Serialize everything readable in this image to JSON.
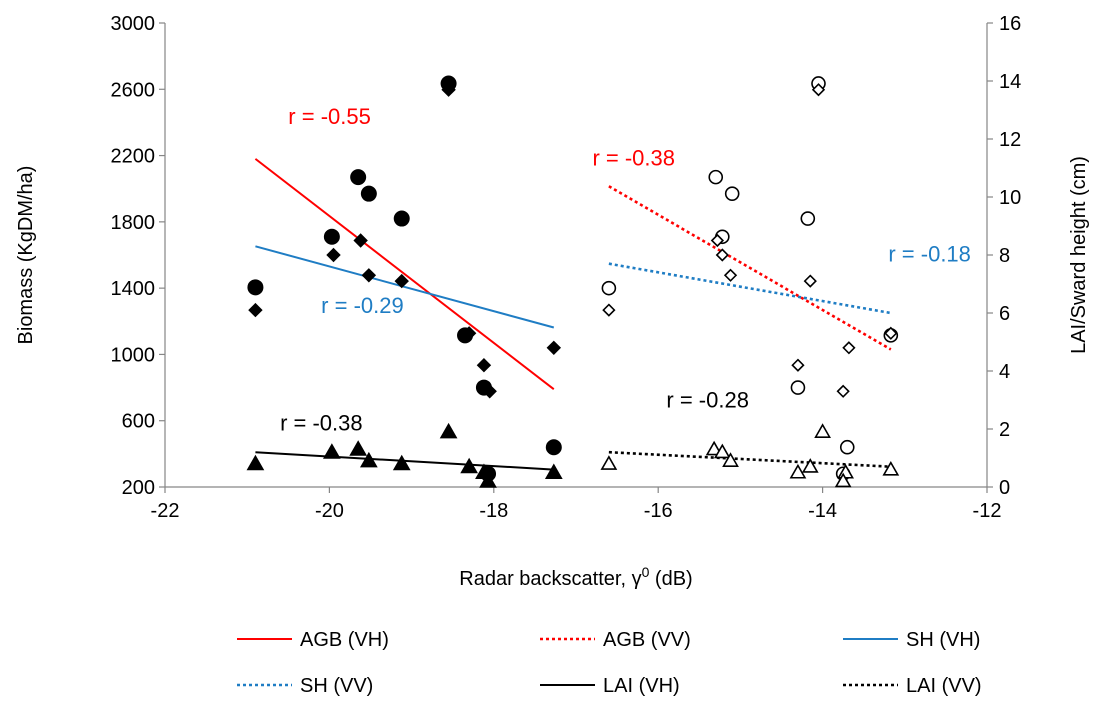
{
  "chart_data": {
    "type": "scatter",
    "xlabel": "Radar backscatter, γ",
    "xlabel_sup": "0",
    "xlabel_unit": " (dB)",
    "ylabel": "Biomass (KgDM/ha)",
    "y2label": "LAI/Sward height (cm)",
    "xlim": [
      -22,
      -12
    ],
    "ylim": [
      200,
      3000
    ],
    "y2lim": [
      0,
      16
    ],
    "xticks": [
      "-22",
      "-20",
      "-18",
      "-16",
      "-14",
      "-12"
    ],
    "yticks": [
      "200",
      "600",
      "1000",
      "1400",
      "1800",
      "2200",
      "2600",
      "3000"
    ],
    "y2ticks": [
      "0",
      "2",
      "4",
      "6",
      "8",
      "10",
      "12",
      "14",
      "16"
    ],
    "grid": false,
    "legend_position": "bottom",
    "colors": {
      "agb": "#ff0000",
      "sh": "#1f7dc4",
      "lai": "#000000"
    },
    "points": [
      {
        "marker": "circle",
        "filled": true,
        "axis": "left",
        "data": [
          [
            -20.9,
            1405
          ],
          [
            -19.97,
            1710
          ],
          [
            -19.65,
            2070
          ],
          [
            -19.52,
            1970
          ],
          [
            -19.12,
            1820
          ],
          [
            -18.55,
            2635
          ],
          [
            -18.35,
            1115
          ],
          [
            -18.12,
            800
          ],
          [
            -18.07,
            280
          ],
          [
            -17.27,
            440
          ]
        ]
      },
      {
        "marker": "diamond",
        "filled": true,
        "axis": "right",
        "data": [
          [
            -20.9,
            6.1
          ],
          [
            -19.95,
            8.0
          ],
          [
            -19.62,
            8.5
          ],
          [
            -19.52,
            7.3
          ],
          [
            -19.12,
            7.1
          ],
          [
            -18.55,
            13.7
          ],
          [
            -18.3,
            5.3
          ],
          [
            -18.12,
            4.2
          ],
          [
            -18.05,
            3.3
          ],
          [
            -17.27,
            4.8
          ]
        ]
      },
      {
        "marker": "triangle",
        "filled": true,
        "axis": "right",
        "data": [
          [
            -20.9,
            0.8
          ],
          [
            -19.97,
            1.2
          ],
          [
            -19.65,
            1.3
          ],
          [
            -19.52,
            0.9
          ],
          [
            -19.12,
            0.8
          ],
          [
            -18.55,
            1.9
          ],
          [
            -18.3,
            0.7
          ],
          [
            -18.12,
            0.5
          ],
          [
            -18.07,
            0.2
          ],
          [
            -17.27,
            0.5
          ]
        ]
      },
      {
        "marker": "circle",
        "filled": false,
        "axis": "left",
        "data": [
          [
            -16.6,
            1400
          ],
          [
            -15.3,
            2070
          ],
          [
            -15.22,
            1710
          ],
          [
            -15.1,
            1970
          ],
          [
            -14.3,
            800
          ],
          [
            -14.18,
            1820
          ],
          [
            -14.05,
            2635
          ],
          [
            -13.7,
            440
          ],
          [
            -13.75,
            280
          ],
          [
            -13.17,
            1115
          ]
        ]
      },
      {
        "marker": "diamond",
        "filled": false,
        "axis": "right",
        "data": [
          [
            -16.6,
            6.1
          ],
          [
            -15.28,
            8.5
          ],
          [
            -15.22,
            8.0
          ],
          [
            -15.12,
            7.3
          ],
          [
            -14.3,
            4.2
          ],
          [
            -14.15,
            7.1
          ],
          [
            -14.05,
            13.7
          ],
          [
            -13.75,
            3.3
          ],
          [
            -13.68,
            4.8
          ],
          [
            -13.17,
            5.3
          ]
        ]
      },
      {
        "marker": "triangle",
        "filled": false,
        "axis": "right",
        "data": [
          [
            -16.6,
            0.8
          ],
          [
            -15.32,
            1.3
          ],
          [
            -15.22,
            1.2
          ],
          [
            -15.12,
            0.9
          ],
          [
            -14.3,
            0.5
          ],
          [
            -14.15,
            0.7
          ],
          [
            -14.0,
            1.9
          ],
          [
            -13.72,
            0.5
          ],
          [
            -13.75,
            0.2
          ],
          [
            -13.17,
            0.6
          ]
        ]
      }
    ],
    "series": [
      {
        "name": "AGB (VH)",
        "color": "#ff0000",
        "dash": "solid",
        "axis": "left",
        "x": [
          -20.9,
          -17.27
        ],
        "y": [
          2180,
          790
        ]
      },
      {
        "name": "AGB (VV)",
        "color": "#ff0000",
        "dash": "dotted",
        "axis": "left",
        "x": [
          -16.6,
          -13.17
        ],
        "y": [
          2015,
          1030
        ]
      },
      {
        "name": "SH (VH)",
        "color": "#1f7dc4",
        "dash": "solid",
        "axis": "right",
        "x": [
          -20.9,
          -17.27
        ],
        "y": [
          8.3,
          5.5
        ]
      },
      {
        "name": "SH (VV)",
        "color": "#1f7dc4",
        "dash": "dotted",
        "axis": "right",
        "x": [
          -16.6,
          -13.17
        ],
        "y": [
          7.7,
          6.0
        ]
      },
      {
        "name": "LAI (VH)",
        "color": "#000000",
        "dash": "solid",
        "axis": "right",
        "x": [
          -20.9,
          -17.27
        ],
        "y": [
          1.2,
          0.6
        ]
      },
      {
        "name": "LAI (VV)",
        "color": "#000000",
        "dash": "dotted",
        "axis": "right",
        "x": [
          -16.6,
          -13.17
        ],
        "y": [
          1.2,
          0.7
        ]
      }
    ],
    "annotations": [
      {
        "text": "r = -0.55",
        "color": "#ff0000",
        "x": -20.5,
        "y": 2390
      },
      {
        "text": "r = -0.38",
        "color": "#ff0000",
        "x": -16.8,
        "y": 2140
      },
      {
        "text": "r = -0.29",
        "color": "#1f7dc4",
        "x": -20.1,
        "y": 1250
      },
      {
        "text": "r = -0.18",
        "color": "#1f7dc4",
        "x": -13.2,
        "y": 1560
      },
      {
        "text": "r = -0.38",
        "color": "#000000",
        "x": -20.6,
        "y": 540
      },
      {
        "text": "r = -0.28",
        "color": "#000000",
        "x": -15.9,
        "y": 680
      }
    ]
  }
}
